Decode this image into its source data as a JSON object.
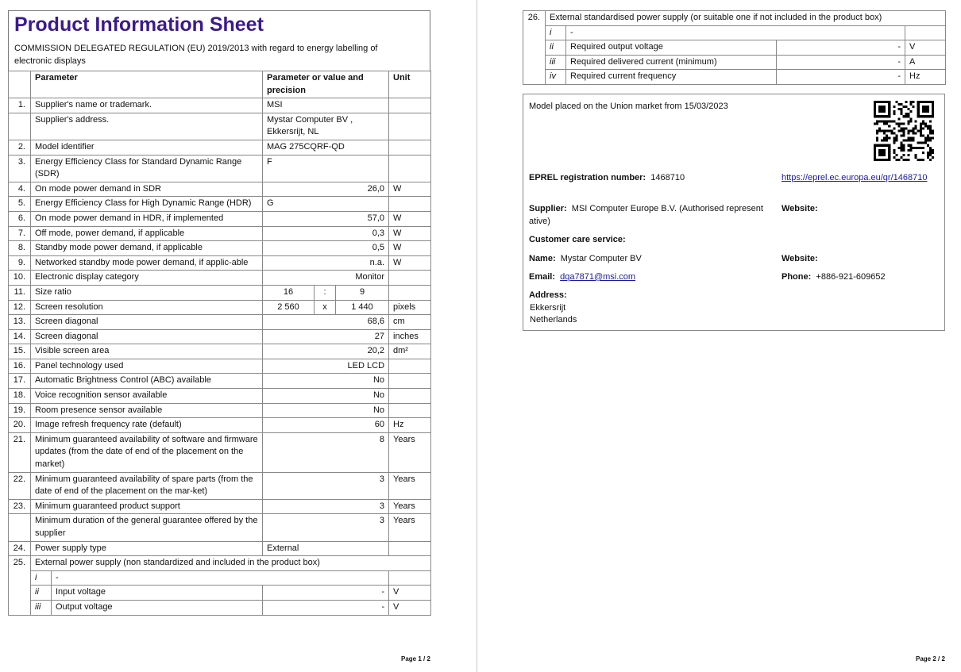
{
  "page1": {
    "title": "Product Information Sheet",
    "subtitle": "COMMISSION DELEGATED REGULATION (EU) 2019/2013 with regard to energy labelling of electronic displays",
    "headers": {
      "parameter": "Parameter",
      "value": "Parameter or value and precision",
      "unit": "Unit"
    },
    "rows": [
      {
        "n": "1.",
        "p": "Supplier's name or trademark.",
        "v": "MSI",
        "u": ""
      },
      {
        "n": "",
        "p": "Supplier's address.",
        "v": "Mystar Computer BV , Ekkersrijt, NL",
        "u": ""
      },
      {
        "n": "2.",
        "p": "Model identifier",
        "v": "MAG 275CQRF-QD",
        "u": ""
      },
      {
        "n": "3.",
        "p": "Energy Efficiency Class for Standard Dynamic Range (SDR)",
        "v": "F",
        "u": ""
      },
      {
        "n": "4.",
        "p": "On mode power demand in SDR",
        "v": "26,0",
        "u": "W"
      },
      {
        "n": "5.",
        "p": "Energy Efficiency Class for High Dynamic Range (HDR)",
        "v": "G",
        "u": ""
      },
      {
        "n": "6.",
        "p": "On mode power demand in HDR, if implemented",
        "v": "57,0",
        "u": "W"
      },
      {
        "n": "7.",
        "p": "Off mode, power demand, if applicable",
        "v": "0,3",
        "u": "W"
      },
      {
        "n": "8.",
        "p": "Standby mode power demand, if applicable",
        "v": "0,5",
        "u": "W"
      },
      {
        "n": "9.",
        "p": "Networked standby mode power demand, if applic-able",
        "v": "n.a.",
        "u": "W"
      },
      {
        "n": "10.",
        "p": "Electronic display category",
        "v": "Monitor",
        "u": ""
      },
      {
        "n": "11.",
        "p": "Size ratio",
        "v": [
          "16",
          ":",
          "9"
        ],
        "u": ""
      },
      {
        "n": "12.",
        "p": "Screen resolution",
        "v": [
          "2 560",
          "x",
          "1 440"
        ],
        "u": "pixels"
      },
      {
        "n": "13.",
        "p": "Screen diagonal",
        "v": "68,6",
        "u": "cm"
      },
      {
        "n": "14.",
        "p": "Screen diagonal",
        "v": "27",
        "u": "inches"
      },
      {
        "n": "15.",
        "p": "Visible screen area",
        "v": "20,2",
        "u": "dm²"
      },
      {
        "n": "16.",
        "p": "Panel technology used",
        "v": "LED LCD",
        "u": ""
      },
      {
        "n": "17.",
        "p": "Automatic Brightness Control (ABC) available",
        "v": "No",
        "u": ""
      },
      {
        "n": "18.",
        "p": "Voice recognition sensor available",
        "v": "No",
        "u": ""
      },
      {
        "n": "19.",
        "p": "Room presence sensor available",
        "v": "No",
        "u": ""
      },
      {
        "n": "20.",
        "p": "Image refresh frequency rate (default)",
        "v": "60",
        "u": "Hz"
      },
      {
        "n": "21.",
        "p": "Minimum guaranteed availability of software and firmware updates (from the date of end of the placement on the market)",
        "v": "8",
        "u": "Years"
      },
      {
        "n": "22.",
        "p": "Minimum guaranteed availability of spare parts (from the date of end of the placement on the mar-ket)",
        "v": "3",
        "u": "Years"
      },
      {
        "n": "23.",
        "p": "Minimum guaranteed product support",
        "v": "3",
        "u": "Years"
      },
      {
        "n": "",
        "p": "Minimum duration of the general guarantee offered by the supplier",
        "v": "3",
        "u": "Years"
      },
      {
        "n": "24.",
        "p": "Power supply type",
        "v": "External",
        "u": ""
      }
    ],
    "eps": {
      "n": "25.",
      "title": "External power supply (non standardized and included in the product box)",
      "sub": [
        {
          "r": "i",
          "p": "-"
        },
        {
          "r": "ii",
          "p": "Input voltage",
          "v": "-",
          "u": "V"
        },
        {
          "r": "iii",
          "p": "Output voltage",
          "v": "-",
          "u": "V"
        }
      ]
    },
    "footer": "Page 1 / 2"
  },
  "page2": {
    "eps": {
      "n": "26.",
      "title": "External standardised power supply (or suitable one if not included in the product box)",
      "sub": [
        {
          "r": "i",
          "p": "-"
        },
        {
          "r": "ii",
          "p": "Required output voltage",
          "v": "-",
          "u": "V"
        },
        {
          "r": "iii",
          "p": "Required delivered current (minimum)",
          "v": "-",
          "u": "A"
        },
        {
          "r": "iv",
          "p": "Required current frequency",
          "v": "-",
          "u": "Hz"
        }
      ]
    },
    "info": {
      "market": "Model placed on the Union market from 15/03/2023",
      "eprel_label": "EPREL registration number:",
      "eprel_value": "1468710",
      "eprel_link": "https://eprel.ec.europa.eu/qr/1468710",
      "supplier_label": "Supplier:",
      "supplier_value": "MSI Computer Europe B.V. (Authorised representative)",
      "website_label": "Website:",
      "care_label": "Customer care service:",
      "name_label": "Name:",
      "name_value": "Mystar Computer BV",
      "website2_label": "Website:",
      "email_label": "Email:",
      "email_value": "dqa7871@msi.com",
      "phone_label": "Phone:",
      "phone_value": "+886-921-609652",
      "address_label": "Address:",
      "address_line1": "Ekkersrijt",
      "address_line2": "Netherlands"
    },
    "footer": "Page 2 / 2"
  },
  "colors": {
    "title": "#3b1a8f",
    "link": "#1a1aa0"
  }
}
